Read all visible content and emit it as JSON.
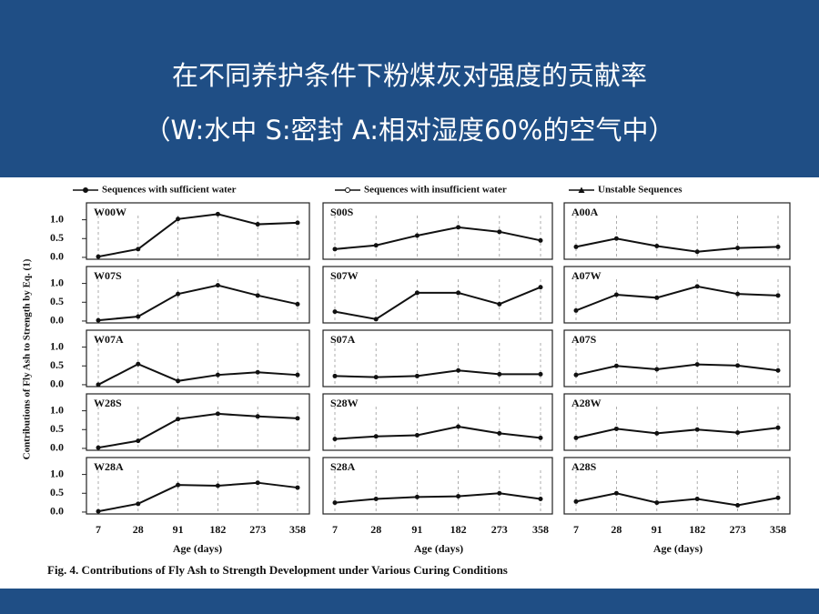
{
  "title": "在不同养护条件下粉煤灰对强度的贡献率",
  "subtitle": "（W:水中  S:密封  A:相对湿度60%的空气中）",
  "figure": {
    "legend": [
      {
        "name": "Sequences with sufficient water",
        "marker": "filled"
      },
      {
        "name": "Sequences with insufficient water",
        "marker": "open"
      },
      {
        "name": "Unstable Sequences",
        "marker": "triangle"
      }
    ],
    "ylabel": "Contributions of Fly Ash to Strength by Eq. (1)",
    "xlabel": "Age (days)",
    "categories": [
      "7",
      "28",
      "91",
      "182",
      "273",
      "358"
    ],
    "caption": "Fig. 4.    Contributions of Fly Ash to Strength Development under Various Curing Conditions"
  },
  "chart_data": [
    {
      "type": "line",
      "title": "W00W",
      "values": [
        0.02,
        0.22,
        1.02,
        1.15,
        0.88,
        0.92
      ],
      "ylim": [
        -0.05,
        1.45
      ],
      "yticks": [
        {
          "value": 0,
          "label": "0.0"
        },
        {
          "value": 0.5,
          "label": "0.5"
        },
        {
          "value": 1,
          "label": "1.0"
        }
      ]
    },
    {
      "type": "line",
      "title": "S00S",
      "values": [
        0.22,
        0.32,
        0.58,
        0.8,
        0.68,
        0.45
      ],
      "ylim": [
        -0.05,
        1.45
      ]
    },
    {
      "type": "line",
      "title": "A00A",
      "values": [
        0.28,
        0.5,
        0.3,
        0.15,
        0.25,
        0.28
      ],
      "ylim": [
        -0.05,
        1.45
      ]
    },
    {
      "type": "line",
      "title": "W07S",
      "values": [
        0.02,
        0.12,
        0.72,
        0.95,
        0.68,
        0.45
      ],
      "ylim": [
        -0.05,
        1.45
      ],
      "yticks": [
        {
          "value": 0,
          "label": "0.0"
        },
        {
          "value": 0.5,
          "label": "0.5"
        },
        {
          "value": 1,
          "label": "1.0"
        }
      ]
    },
    {
      "type": "line",
      "title": "S07W",
      "values": [
        0.25,
        0.05,
        0.75,
        0.75,
        0.45,
        0.9
      ],
      "ylim": [
        -0.05,
        1.45
      ]
    },
    {
      "type": "line",
      "title": "A07W",
      "values": [
        0.28,
        0.7,
        0.62,
        0.92,
        0.72,
        0.68
      ],
      "ylim": [
        -0.05,
        1.45
      ]
    },
    {
      "type": "line",
      "title": "W07A",
      "values": [
        0,
        0.55,
        0.1,
        0.26,
        0.33,
        0.26
      ],
      "ylim": [
        -0.05,
        1.45
      ],
      "yticks": [
        {
          "value": 0,
          "label": "0.0"
        },
        {
          "value": 0.5,
          "label": "0.5"
        },
        {
          "value": 1,
          "label": "1.0"
        }
      ]
    },
    {
      "type": "line",
      "title": "S07A",
      "values": [
        0.23,
        0.2,
        0.23,
        0.38,
        0.28,
        0.28
      ],
      "ylim": [
        -0.05,
        1.45
      ]
    },
    {
      "type": "line",
      "title": "A07S",
      "values": [
        0.26,
        0.5,
        0.41,
        0.54,
        0.51,
        0.38
      ],
      "ylim": [
        -0.05,
        1.45
      ]
    },
    {
      "type": "line",
      "title": "W28S",
      "values": [
        0.02,
        0.2,
        0.78,
        0.92,
        0.85,
        0.8
      ],
      "ylim": [
        -0.05,
        1.45
      ],
      "yticks": [
        {
          "value": 0,
          "label": "0.0"
        },
        {
          "value": 0.5,
          "label": "0.5"
        },
        {
          "value": 1,
          "label": "1.0"
        }
      ]
    },
    {
      "type": "line",
      "title": "S28W",
      "values": [
        0.25,
        0.32,
        0.35,
        0.58,
        0.4,
        0.28
      ],
      "ylim": [
        -0.05,
        1.45
      ]
    },
    {
      "type": "line",
      "title": "A28W",
      "values": [
        0.28,
        0.52,
        0.4,
        0.5,
        0.42,
        0.55
      ],
      "ylim": [
        -0.05,
        1.45
      ]
    },
    {
      "type": "line",
      "title": "W28A",
      "values": [
        0.02,
        0.22,
        0.72,
        0.7,
        0.78,
        0.65
      ],
      "ylim": [
        -0.05,
        1.45
      ],
      "yticks": [
        {
          "value": 0,
          "label": "0.0"
        },
        {
          "value": 0.5,
          "label": "0.5"
        },
        {
          "value": 1,
          "label": "1.0"
        }
      ]
    },
    {
      "type": "line",
      "title": "S28A",
      "values": [
        0.25,
        0.35,
        0.4,
        0.42,
        0.5,
        0.35
      ],
      "ylim": [
        -0.05,
        1.45
      ]
    },
    {
      "type": "line",
      "title": "A28S",
      "values": [
        0.28,
        0.5,
        0.25,
        0.35,
        0.18,
        0.38
      ],
      "ylim": [
        -0.05,
        1.45
      ]
    }
  ]
}
